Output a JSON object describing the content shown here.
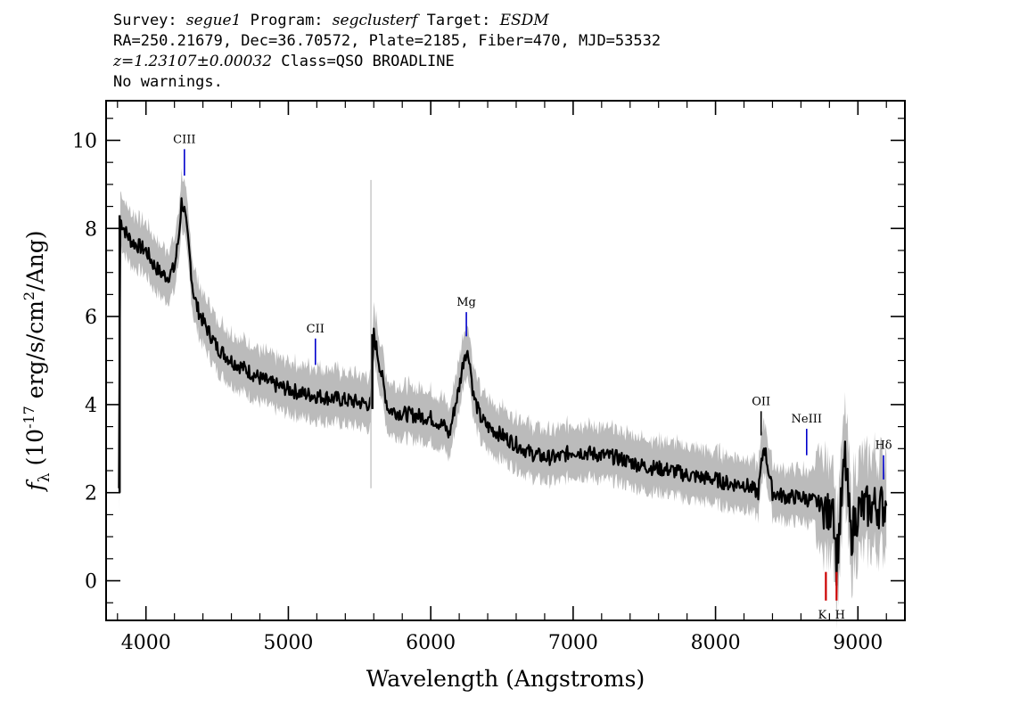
{
  "header": {
    "survey_label": "Survey:",
    "survey": "segue1",
    "program_label": "Program:",
    "program": "segclusterf",
    "target_label": "Target:",
    "target": "ESDM",
    "line2": "RA=250.21679, Dec=36.70572, Plate=2185, Fiber=470, MJD=53532",
    "redshift": "z=1.23107±0.00032",
    "class_text": "Class=QSO BROADLINE",
    "warnings": "No warnings."
  },
  "chart_data": {
    "type": "line",
    "xlabel": "Wavelength (Angstroms)",
    "ylabel": "f_λ (10^-17 erg/s/cm^2/Ang)",
    "xlim": [
      3720,
      9330
    ],
    "ylim": [
      -0.9,
      10.9
    ],
    "x_ticks": [
      4000,
      5000,
      6000,
      7000,
      8000,
      9000
    ],
    "y_ticks": [
      0,
      2,
      4,
      6,
      8,
      10
    ],
    "series": [
      {
        "role": "flux",
        "color": "#000000",
        "x": [
          3810,
          3820,
          3860,
          3900,
          3950,
          4000,
          4050,
          4100,
          4150,
          4200,
          4230,
          4250,
          4270,
          4300,
          4330,
          4360,
          4400,
          4450,
          4500,
          4600,
          4700,
          4800,
          4900,
          5000,
          5100,
          5200,
          5300,
          5400,
          5500,
          5580,
          5600,
          5700,
          5800,
          5900,
          6000,
          6050,
          6100,
          6130,
          6160,
          6200,
          6240,
          6270,
          6300,
          6350,
          6400,
          6500,
          6600,
          6700,
          6800,
          6900,
          7000,
          7100,
          7200,
          7300,
          7400,
          7500,
          7600,
          7700,
          7800,
          7900,
          8000,
          8100,
          8200,
          8300,
          8340,
          8400,
          8500,
          8600,
          8700,
          8760,
          8800,
          8820,
          8850,
          8880,
          8910,
          8950,
          9000,
          9100,
          9200
        ],
        "y": [
          2.1,
          8.2,
          7.9,
          7.7,
          7.6,
          7.5,
          7.2,
          7.0,
          6.9,
          7.1,
          7.8,
          8.6,
          8.4,
          7.6,
          6.6,
          6.2,
          5.9,
          5.6,
          5.3,
          5.0,
          4.8,
          4.6,
          4.45,
          4.35,
          4.25,
          4.2,
          4.15,
          4.1,
          4.05,
          4.0,
          5.6,
          3.9,
          3.8,
          3.75,
          3.7,
          3.6,
          3.5,
          3.3,
          3.8,
          4.4,
          5.2,
          5.1,
          4.2,
          3.7,
          3.5,
          3.3,
          3.1,
          2.9,
          2.8,
          2.8,
          2.95,
          2.9,
          2.85,
          2.8,
          2.7,
          2.6,
          2.55,
          2.5,
          2.4,
          2.35,
          2.3,
          2.2,
          2.2,
          2.0,
          3.1,
          2.0,
          1.9,
          1.9,
          1.8,
          1.7,
          1.4,
          2.2,
          0.4,
          1.6,
          2.8,
          1.0,
          1.6,
          1.7,
          1.7
        ]
      },
      {
        "role": "error-band",
        "color": "#bbbbbb",
        "half_width": 0.55
      }
    ],
    "spikes": [
      {
        "x": 3815,
        "y_from": 2.0,
        "y_to": 8.3,
        "color": "#000000"
      },
      {
        "x": 5580,
        "y_from": 2.1,
        "y_to": 9.1,
        "color": "#bbbbbb"
      },
      {
        "x": 5590,
        "y_from": 3.9,
        "y_to": 5.6,
        "color": "#000000"
      }
    ],
    "emission_lines": [
      {
        "label": "CIII",
        "x": 4270,
        "y_from": 9.2,
        "y_to": 9.8,
        "color": "#0000cc"
      },
      {
        "label": "CII",
        "x": 5190,
        "y_from": 4.9,
        "y_to": 5.5,
        "color": "#0000cc"
      },
      {
        "label": "Mg",
        "x": 6250,
        "y_from": 5.55,
        "y_to": 6.1,
        "color": "#0000cc"
      },
      {
        "label": "OII",
        "x": 8320,
        "y_from": 3.3,
        "y_to": 3.85,
        "color": "#000000"
      },
      {
        "label": "NeIII",
        "x": 8640,
        "y_from": 2.85,
        "y_to": 3.45,
        "color": "#0000cc"
      },
      {
        "label": "Hδ",
        "x": 9180,
        "y_from": 2.3,
        "y_to": 2.85,
        "color": "#0000cc"
      }
    ],
    "absorption_lines": [
      {
        "label": "K",
        "x": 8775,
        "y_from": -0.45,
        "y_to": 0.2,
        "color": "#cc0000"
      },
      {
        "label": "H",
        "x": 8850,
        "y_from": -0.45,
        "y_to": 0.2,
        "color": "#cc0000"
      }
    ]
  }
}
